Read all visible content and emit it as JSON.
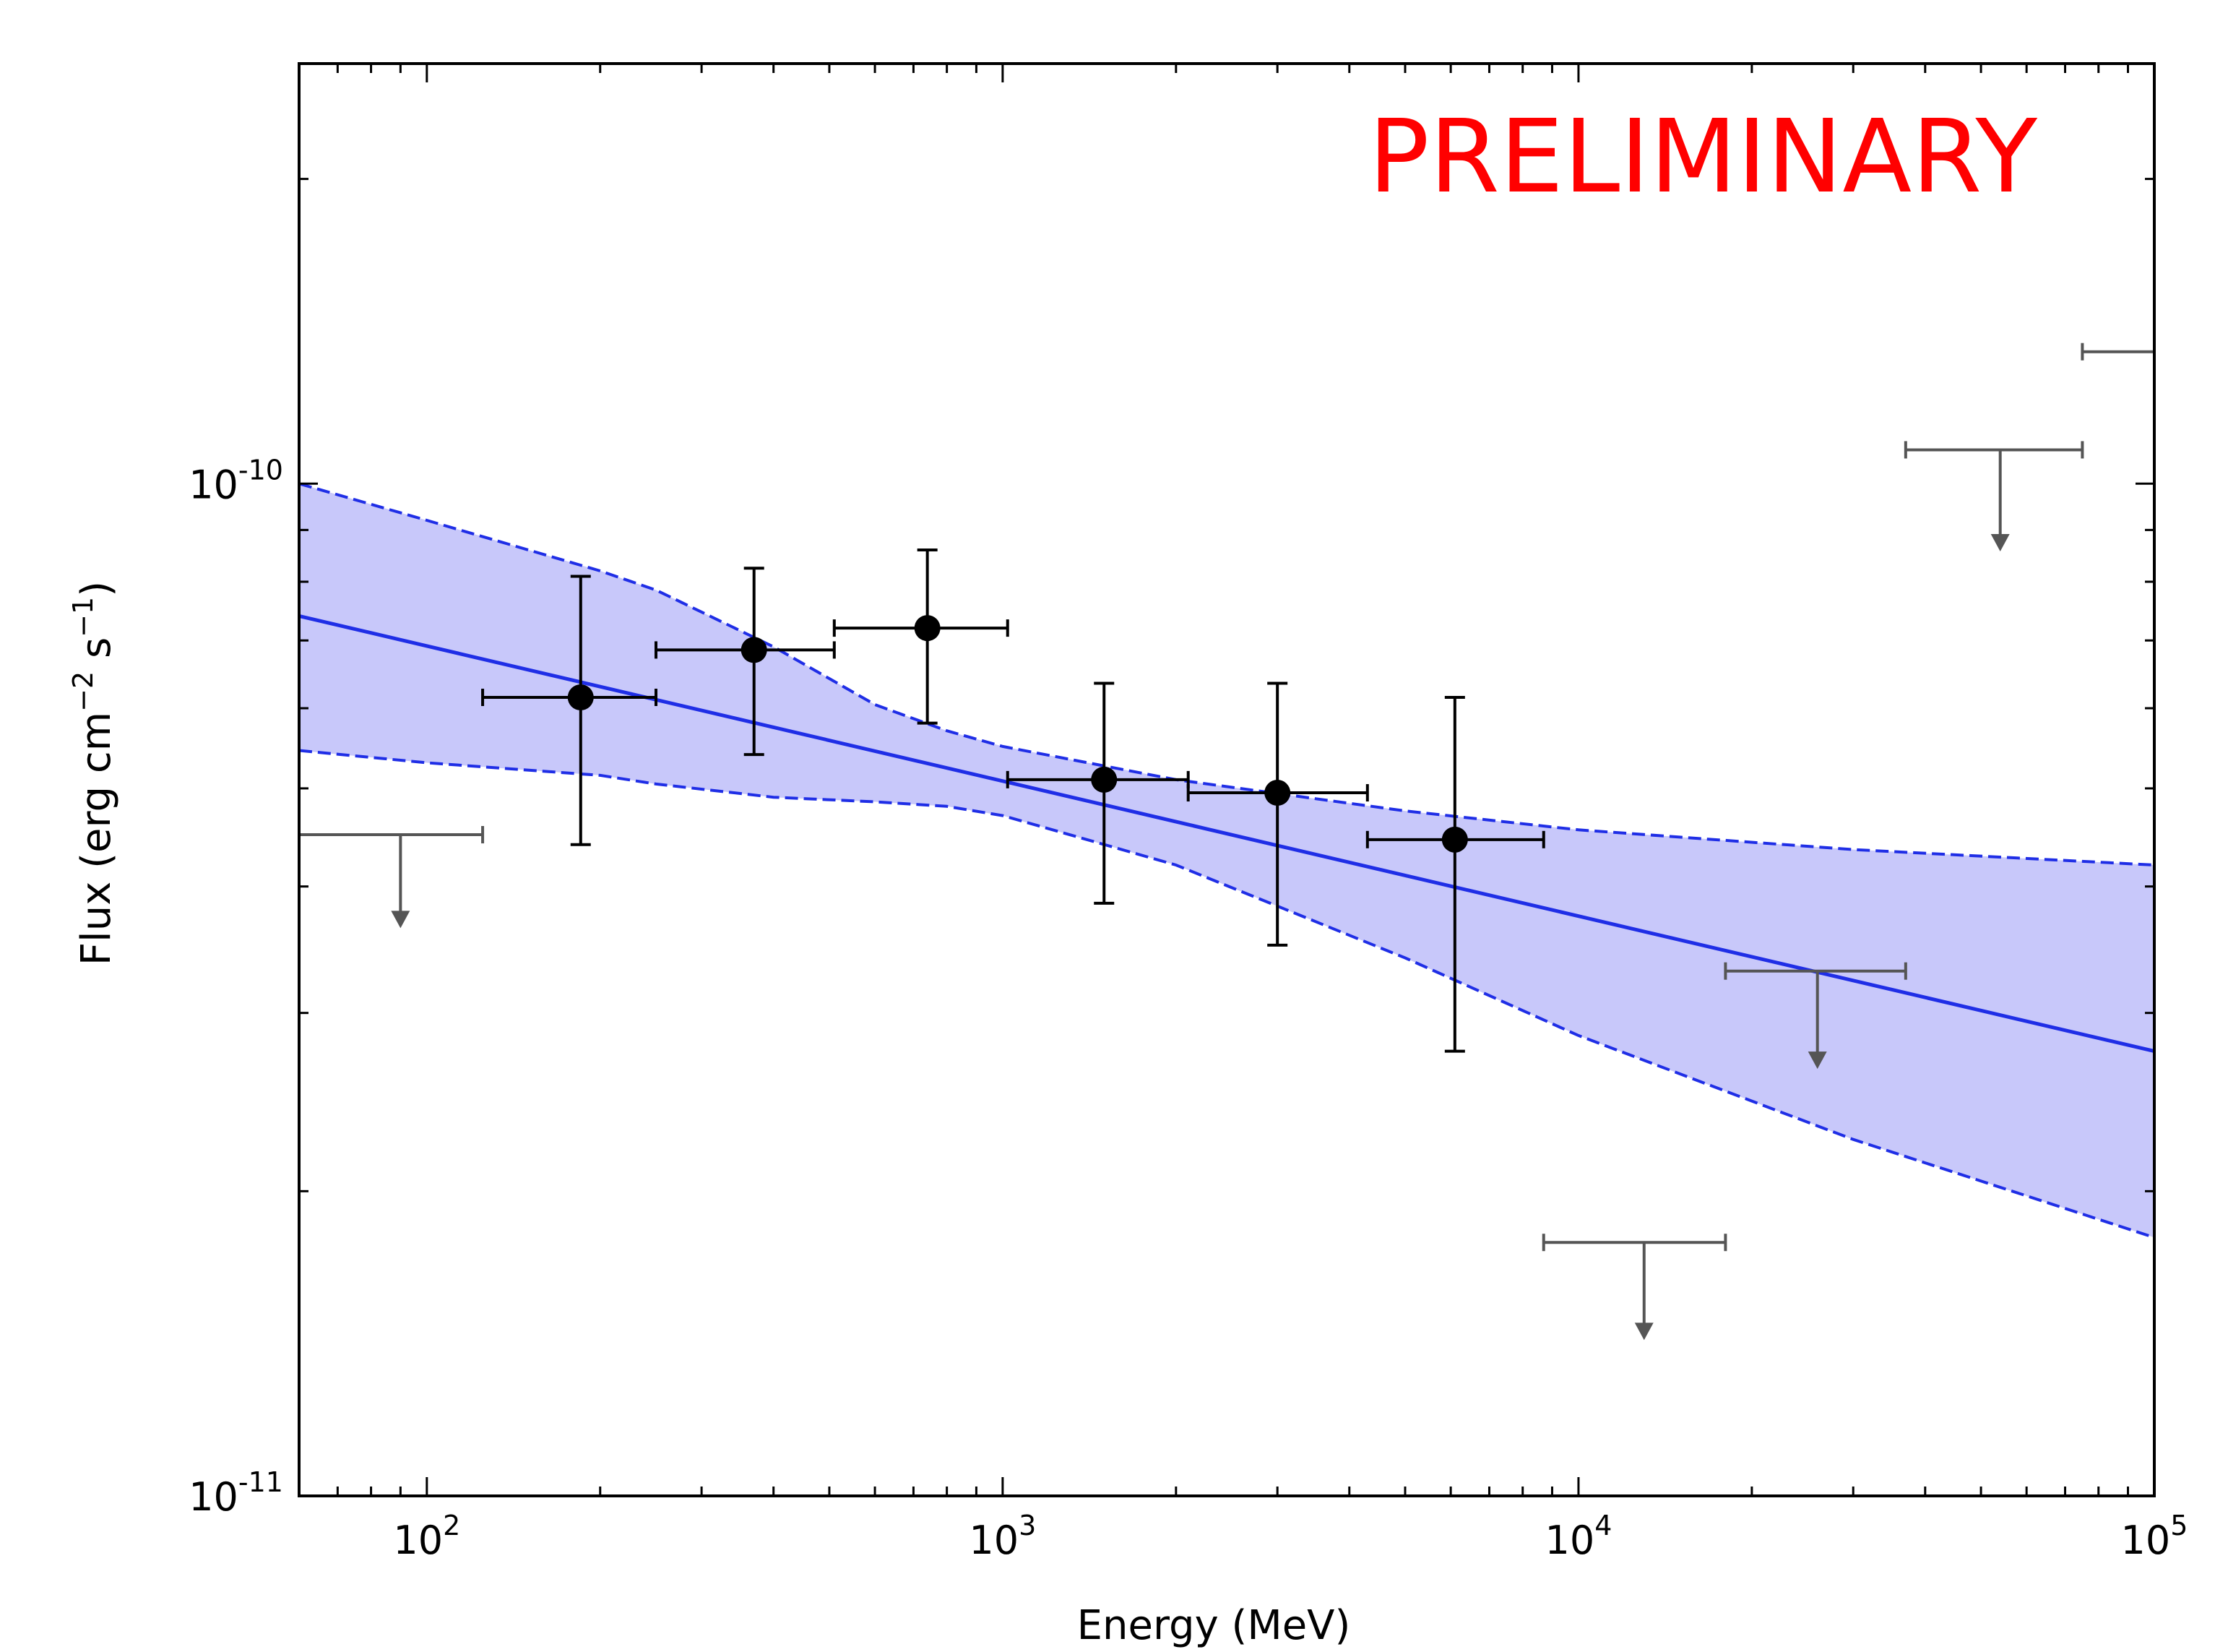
{
  "chart_data": {
    "type": "scatter",
    "title": "",
    "xlabel": "Energy (MeV)",
    "ylabel": "Flux (erg cm⁻² s⁻¹)",
    "ylabel_parts": {
      "pre": "Flux (erg cm",
      "exp1": "−2",
      "mid": " s",
      "exp2": "−1",
      "post": ")"
    },
    "xscale": "log",
    "yscale": "log",
    "xlim": [
      60,
      100000
    ],
    "ylim": [
      1e-11,
      2.6e-10
    ],
    "x_ticks": [
      {
        "value": 100,
        "base": "10",
        "exp": "2"
      },
      {
        "value": 1000,
        "base": "10",
        "exp": "3"
      },
      {
        "value": 10000,
        "base": "10",
        "exp": "4"
      },
      {
        "value": 100000,
        "base": "10",
        "exp": "5"
      }
    ],
    "y_ticks": [
      {
        "value": 1e-11,
        "base": "10",
        "exp": "-11"
      },
      {
        "value": 1e-10,
        "base": "10",
        "exp": "-10"
      }
    ],
    "annotation": {
      "text": "PRELIMINARY",
      "color": "#ff0000"
    },
    "colors": {
      "points": "#000000",
      "upper_limits": "#555555",
      "model_line": "#1f2ee6",
      "band_fill": "#c8c8fa"
    },
    "points": [
      {
        "x": 185,
        "y": 6.15e-11,
        "xlo": 125,
        "xhi": 250,
        "ylo": 4.4e-11,
        "yhi": 8.1e-11
      },
      {
        "x": 370,
        "y": 6.85e-11,
        "xlo": 250,
        "xhi": 510,
        "ylo": 5.4e-11,
        "yhi": 8.25e-11
      },
      {
        "x": 740,
        "y": 7.2e-11,
        "xlo": 510,
        "xhi": 1020,
        "ylo": 5.8e-11,
        "yhi": 8.6e-11
      },
      {
        "x": 1500,
        "y": 5.1e-11,
        "xlo": 1020,
        "xhi": 2100,
        "ylo": 3.85e-11,
        "yhi": 6.35e-11
      },
      {
        "x": 3000,
        "y": 4.95e-11,
        "xlo": 2100,
        "xhi": 4300,
        "ylo": 3.5e-11,
        "yhi": 6.35e-11
      },
      {
        "x": 6100,
        "y": 4.45e-11,
        "xlo": 4300,
        "xhi": 8700,
        "ylo": 2.75e-11,
        "yhi": 6.15e-11
      }
    ],
    "upper_limits": [
      {
        "x": 90,
        "y": 4.5e-11,
        "xlo": 60,
        "xhi": 125,
        "arrow_to": 3.65e-11
      },
      {
        "x": 13000,
        "y": 1.78e-11,
        "xlo": 8700,
        "xhi": 18000,
        "arrow_to": 1.43e-11
      },
      {
        "x": 26000,
        "y": 3.3e-11,
        "xlo": 18000,
        "xhi": 37000,
        "arrow_to": 2.65e-11
      },
      {
        "x": 54000,
        "y": 1.08e-10,
        "xlo": 37000,
        "xhi": 75000,
        "arrow_to": 8.6e-11
      },
      {
        "x": 90000,
        "y": 1.35e-10,
        "xlo": 75000,
        "xhi": 100000,
        "arrow_to": null
      }
    ],
    "model_line": {
      "x": [
        60,
        100000
      ],
      "y": [
        7.4e-11,
        2.75e-11
      ]
    },
    "band": {
      "x": [
        60,
        100,
        200,
        250,
        400,
        600,
        800,
        1000,
        2000,
        5000,
        10000,
        30000,
        100000
      ],
      "upper": [
        1e-10,
        9.2e-11,
        8.2e-11,
        7.85e-11,
        6.9e-11,
        6.05e-11,
        5.7e-11,
        5.5e-11,
        5.1e-11,
        4.75e-11,
        4.55e-11,
        4.35e-11,
        4.2e-11
      ],
      "lower": [
        5.45e-11,
        5.3e-11,
        5.15e-11,
        5.05e-11,
        4.9e-11,
        4.85e-11,
        4.8e-11,
        4.7e-11,
        4.2e-11,
        3.4e-11,
        2.85e-11,
        2.25e-11,
        1.8e-11
      ]
    }
  }
}
